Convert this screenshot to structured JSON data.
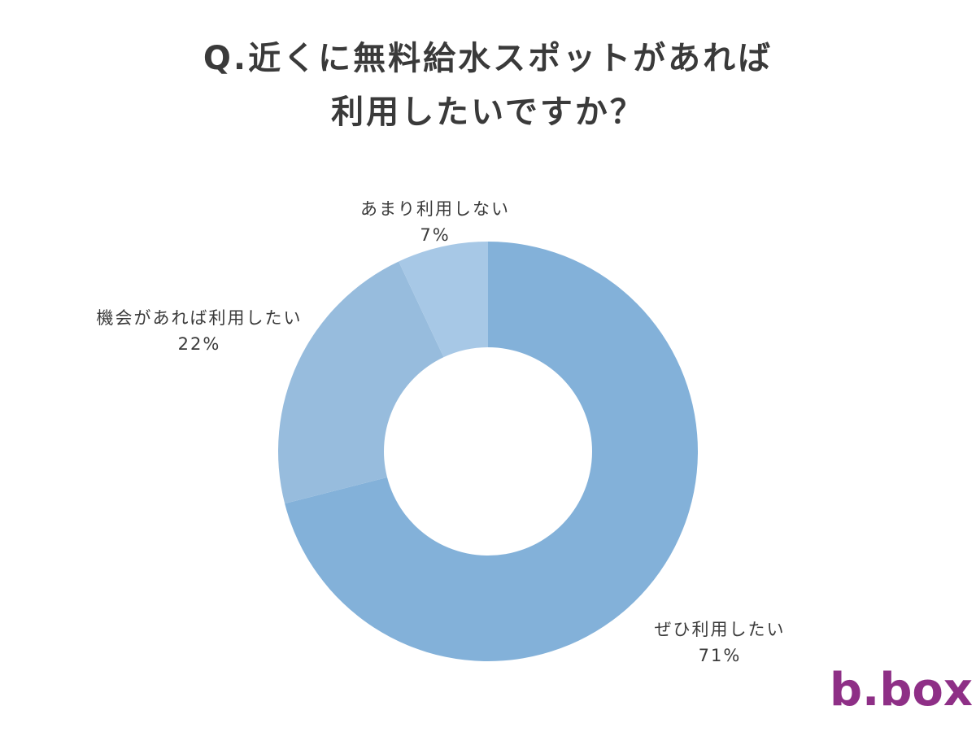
{
  "chart_data": {
    "type": "donut",
    "title": [
      "Q.近くに無料給水スポットがあれば",
      "利用したいですか？"
    ],
    "categories": [
      "ぜひ利用したい",
      "機会があれば利用したい",
      "あまり利用しない"
    ],
    "values": [
      71,
      22,
      7
    ],
    "value_labels": [
      "71%",
      "22%",
      "7%"
    ],
    "colors": [
      "#83b1d9",
      "#97bcdd",
      "#a7c8e6"
    ]
  },
  "logo": "b.box"
}
